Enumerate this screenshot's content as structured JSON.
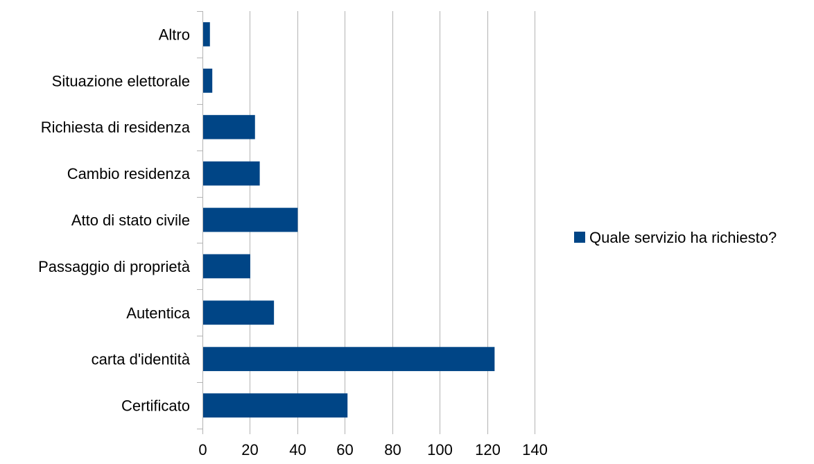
{
  "chart_data": {
    "type": "bar",
    "orientation": "horizontal",
    "categories": [
      "Altro",
      "Situazione elettorale",
      "Richiesta di residenza",
      "Cambio residenza",
      "Atto di stato civile",
      "Passaggio di proprietà",
      "Autentica",
      "carta d'identità",
      "Certificato"
    ],
    "series": [
      {
        "name": "Quale servizio ha richiesto?",
        "values": [
          3,
          4,
          22,
          24,
          40,
          20,
          30,
          123,
          61
        ],
        "color": "#004586"
      }
    ],
    "xlim": [
      0,
      140
    ],
    "x_ticks": [
      0,
      20,
      40,
      60,
      80,
      100,
      120,
      140
    ],
    "grid": true,
    "grid_color": "#b3b3b3",
    "legend_position": "right"
  }
}
